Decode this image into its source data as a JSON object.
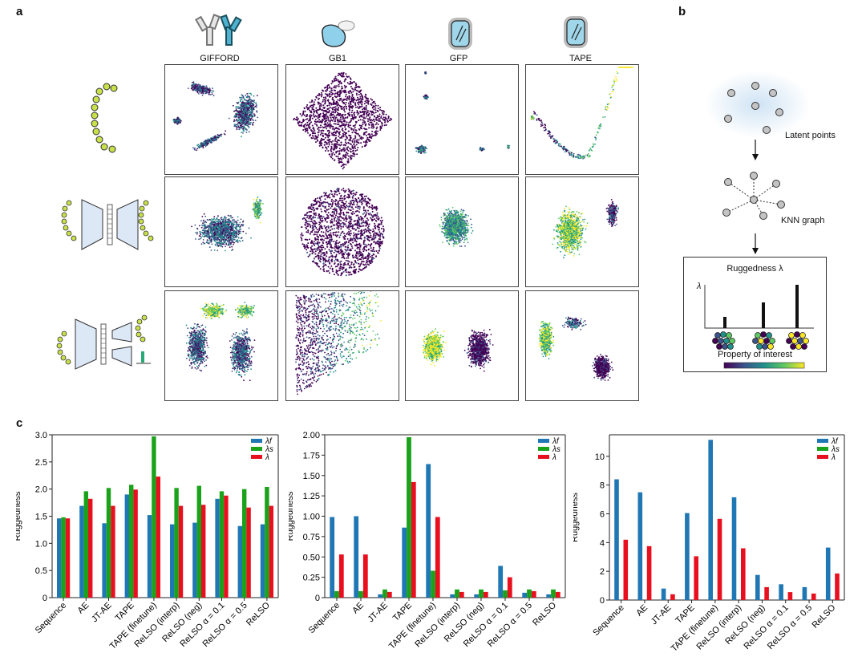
{
  "panel_labels": {
    "a": "a",
    "b": "b",
    "c": "c"
  },
  "columns": [
    "GIFFORD",
    "GB1",
    "GFP",
    "TAPE"
  ],
  "rows": [
    "sequence",
    "autoencoder",
    "relso"
  ],
  "panel_b": {
    "latent_points": "Latent points",
    "knn_graph": "KNN graph",
    "ruggedness_title": "Ruggedness λ",
    "lambda_axis": "λ",
    "property_label": "Property of interest"
  },
  "colors": {
    "lambda_f": "#1f77b4",
    "lambda_s": "#1aa31a",
    "lambda": "#e8101e",
    "viridis": [
      "#440154",
      "#3b528b",
      "#21918c",
      "#5ec962",
      "#fde725"
    ]
  },
  "chart_data": [
    {
      "type": "bar",
      "ylabel": "Ruggedness",
      "ylim": [
        0,
        3.0
      ],
      "yticks": [
        "0",
        "0.5",
        "1.0",
        "1.5",
        "2.0",
        "2.5",
        "3.0"
      ],
      "ytick_values": [
        0,
        0.5,
        1.0,
        1.5,
        2.0,
        2.5,
        3.0
      ],
      "categories": [
        "Sequence",
        "AE",
        "JT-AE",
        "TAPE",
        "TAPE (finetune)",
        "ReLSO (interp)",
        "ReLSO (neg)",
        "ReLSO α = 0.1",
        "ReLSO α = 0.5",
        "ReLSO"
      ],
      "legend": [
        "λf",
        "λs",
        "λ"
      ],
      "series": [
        {
          "name": "λf",
          "values": [
            1.46,
            1.69,
            1.37,
            1.9,
            1.52,
            1.35,
            1.38,
            1.82,
            1.32,
            1.35
          ]
        },
        {
          "name": "λs",
          "values": [
            1.48,
            1.96,
            2.02,
            2.08,
            2.97,
            2.02,
            2.06,
            1.96,
            2.0,
            2.04
          ]
        },
        {
          "name": "λ",
          "values": [
            1.46,
            1.82,
            1.69,
            1.99,
            2.23,
            1.69,
            1.71,
            1.88,
            1.66,
            1.69
          ]
        }
      ]
    },
    {
      "type": "bar",
      "ylabel": "Ruggedness",
      "ylim": [
        0,
        2.0
      ],
      "yticks": [
        "0",
        "0.25",
        "0.50",
        "0.75",
        "1.00",
        "1.25",
        "1.50",
        "1.75",
        "2.00"
      ],
      "ytick_values": [
        0,
        0.25,
        0.5,
        0.75,
        1.0,
        1.25,
        1.5,
        1.75,
        2.0
      ],
      "categories": [
        "Sequence",
        "AE",
        "JT-AE",
        "TAPE",
        "TAPE (finetune)",
        "ReLSO (interp)",
        "ReLSO (neg)",
        "ReLSO α = 0.1",
        "ReLSO α = 0.5",
        "ReLSO"
      ],
      "legend": [
        "λf",
        "λs",
        "λ"
      ],
      "series": [
        {
          "name": "λf",
          "values": [
            0.99,
            1.0,
            0.04,
            0.86,
            1.64,
            0.04,
            0.04,
            0.39,
            0.06,
            0.04
          ]
        },
        {
          "name": "λs",
          "values": [
            0.08,
            0.08,
            0.1,
            1.97,
            0.33,
            0.1,
            0.1,
            0.09,
            0.1,
            0.1
          ]
        },
        {
          "name": "λ",
          "values": [
            0.53,
            0.53,
            0.07,
            1.42,
            0.99,
            0.07,
            0.07,
            0.25,
            0.08,
            0.07
          ]
        }
      ]
    },
    {
      "type": "bar",
      "ylabel": "Ruggedness",
      "ylim": [
        0,
        11.5
      ],
      "yticks": [
        "0",
        "2",
        "4",
        "6",
        "8",
        "10"
      ],
      "ytick_values": [
        0,
        2,
        4,
        6,
        8,
        10
      ],
      "categories": [
        "Sequence",
        "AE",
        "JT-AE",
        "TAPE",
        "TAPE (finetune)",
        "ReLSO (interp)",
        "ReLSO (neg)",
        "ReLSO α = 0.1",
        "ReLSO α = 0.5",
        "ReLSO"
      ],
      "legend": [
        "λf",
        "λs",
        "λ"
      ],
      "series": [
        {
          "name": "λf",
          "values": [
            8.4,
            7.5,
            0.8,
            6.05,
            11.15,
            7.15,
            1.75,
            1.1,
            0.9,
            3.65
          ]
        },
        {
          "name": "λs",
          "values": [
            0,
            0,
            0,
            0,
            0,
            0,
            0,
            0,
            0,
            0
          ]
        },
        {
          "name": "λ",
          "values": [
            4.2,
            3.75,
            0.4,
            3.05,
            5.65,
            3.6,
            0.9,
            0.55,
            0.45,
            1.85
          ]
        }
      ]
    }
  ]
}
